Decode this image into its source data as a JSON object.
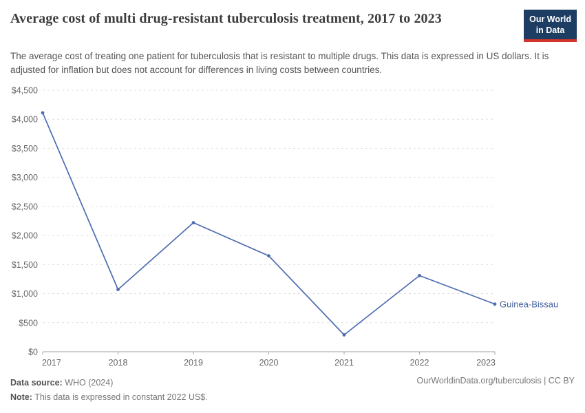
{
  "header": {
    "title": "Average cost of multi drug-resistant tuberculosis treatment, 2017 to 2023",
    "subtitle": "The average cost of treating one patient for tuberculosis that is resistant to multiple drugs. This data is expressed in US dollars. It is adjusted for inflation but does not account for differences in living costs between countries.",
    "logo": {
      "line1": "Our World",
      "line2": "in Data"
    }
  },
  "chart_data": {
    "type": "line",
    "title": "Average cost of multi drug-resistant tuberculosis treatment, 2017 to 2023",
    "x": [
      2017,
      2018,
      2019,
      2020,
      2021,
      2022,
      2023
    ],
    "series": [
      {
        "name": "Guinea-Bissau",
        "values": [
          4110,
          1070,
          2220,
          1650,
          290,
          1310,
          820
        ]
      }
    ],
    "ylim": [
      0,
      4500
    ],
    "yticks": [
      {
        "value": 0,
        "label": "$0"
      },
      {
        "value": 500,
        "label": "$500"
      },
      {
        "value": 1000,
        "label": "$1,000"
      },
      {
        "value": 1500,
        "label": "$1,500"
      },
      {
        "value": 2000,
        "label": "$2,000"
      },
      {
        "value": 2500,
        "label": "$2,500"
      },
      {
        "value": 3000,
        "label": "$3,000"
      },
      {
        "value": 3500,
        "label": "$3,500"
      },
      {
        "value": 4000,
        "label": "$4,000"
      },
      {
        "value": 4500,
        "label": "$4,500"
      }
    ],
    "grid": "horizontal-dashed",
    "legend": "end-of-line-label",
    "colors": {
      "line": "#4c6cb0",
      "series_label": "#44639f",
      "grid": "#e0e0e0",
      "axis": "#a3a3a3",
      "tick_text": "#666666"
    }
  },
  "footer": {
    "source_label": "Data source:",
    "source_value": " WHO (2024)",
    "note_label": "Note:",
    "note_value": " This data is expressed in constant 2022 US$.",
    "right_text": "OurWorldinData.org/tuberculosis | CC BY"
  }
}
